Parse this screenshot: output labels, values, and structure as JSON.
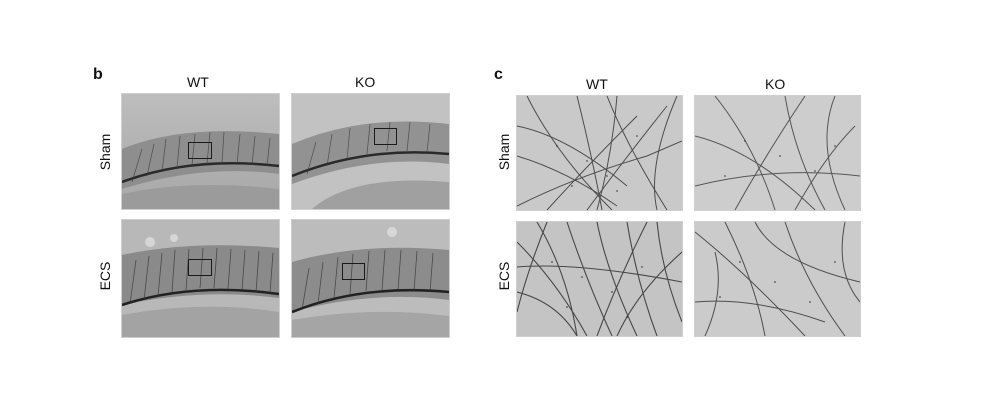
{
  "figure": {
    "panels": [
      {
        "letter": "b",
        "columns": [
          "WT",
          "KO"
        ],
        "rows": [
          "Sham",
          "ECS"
        ],
        "image_type": "hippocampus-low-magnification",
        "has_roi_boxes": true
      },
      {
        "letter": "c",
        "columns": [
          "WT",
          "KO"
        ],
        "rows": [
          "Sham",
          "ECS"
        ],
        "image_type": "dendrite-high-magnification",
        "has_roi_boxes": false
      }
    ]
  }
}
